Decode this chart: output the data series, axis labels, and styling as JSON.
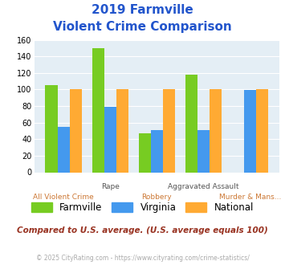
{
  "title_line1": "2019 Farmville",
  "title_line2": "Violent Crime Comparison",
  "categories": [
    "All Violent Crime",
    "Rape",
    "Robbery",
    "Aggravated Assault",
    "Murder & Mans..."
  ],
  "farmville": [
    105,
    150,
    47,
    118,
    0
  ],
  "virginia": [
    55,
    79,
    51,
    51,
    99
  ],
  "national": [
    100,
    100,
    100,
    100,
    100
  ],
  "color_farmville": "#77cc22",
  "color_virginia": "#4499ee",
  "color_national": "#ffaa33",
  "ylim": [
    0,
    160
  ],
  "yticks": [
    0,
    20,
    40,
    60,
    80,
    100,
    120,
    140,
    160
  ],
  "bg_color": "#e4eef5",
  "footnote": "Compared to U.S. average. (U.S. average equals 100)",
  "copyright": "© 2025 CityRating.com - https://www.cityrating.com/crime-statistics/",
  "title_color": "#2255cc",
  "footnote_color": "#993322",
  "copyright_color": "#aaaaaa",
  "copyright_link_color": "#4499cc",
  "label_top_color": "#555555",
  "label_bot_color": "#cc7733"
}
